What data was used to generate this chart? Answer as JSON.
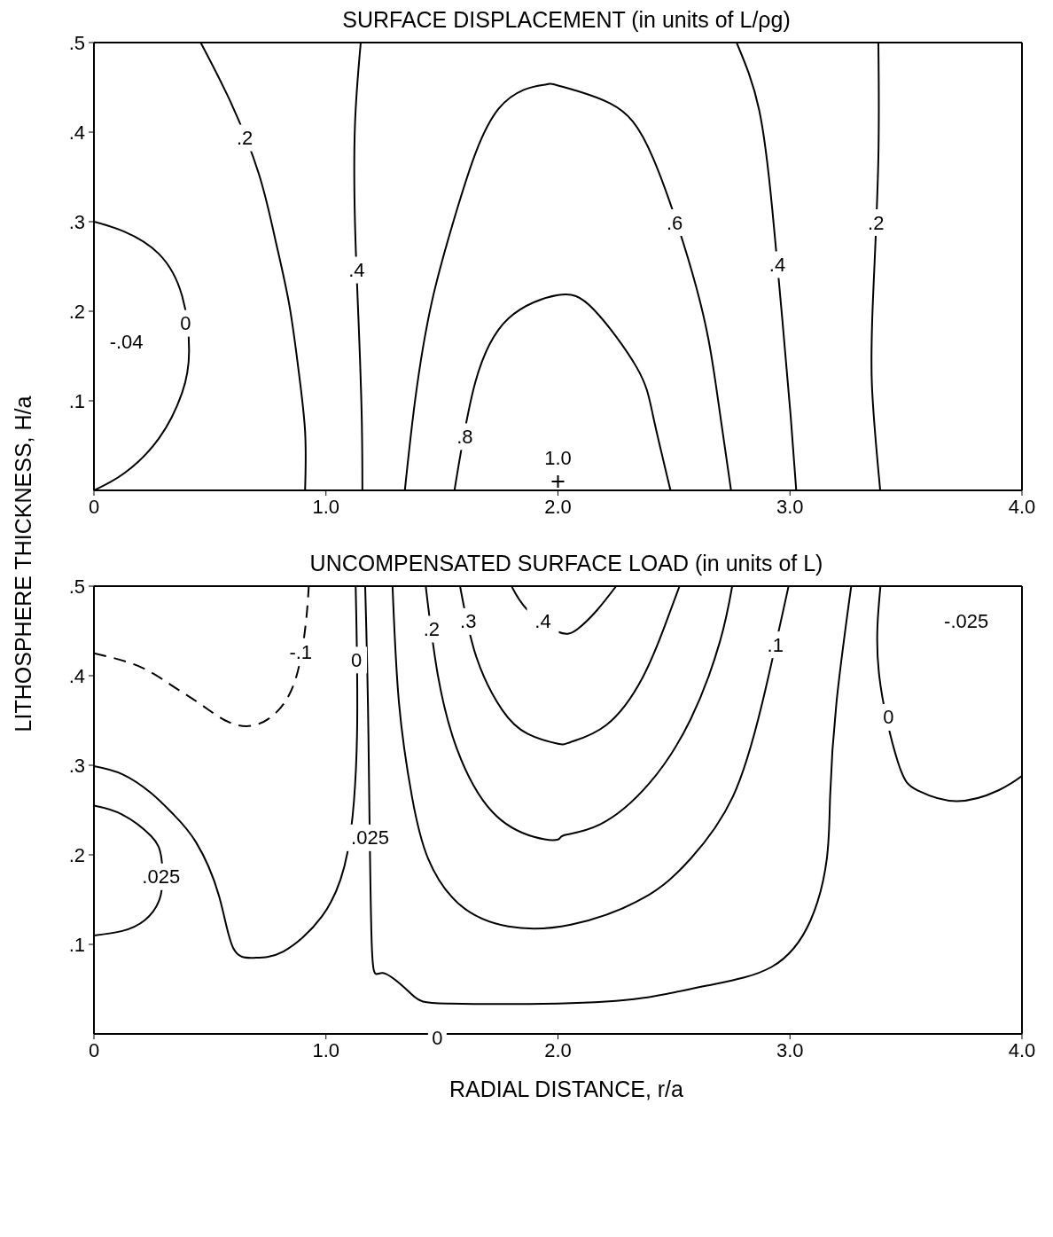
{
  "chart_data": [
    {
      "type": "line",
      "title": "SURFACE DISPLACEMENT (in units of L/ρg)",
      "ylabel": "LITHOSPHERE THICKNESS, H/a",
      "xlim": [
        0,
        4
      ],
      "ylim": [
        0,
        0.5
      ],
      "xticks": [
        0,
        {
          "value": 1,
          "label": "1.0"
        },
        {
          "value": 2,
          "label": "2.0"
        },
        {
          "value": 3,
          "label": "3.0"
        },
        {
          "value": 4,
          "label": "4.0"
        }
      ],
      "yticks": [
        {
          "value": 0.1,
          "label": ".1"
        },
        {
          "value": 0.2,
          "label": ".2"
        },
        {
          "value": 0.3,
          "label": ".3"
        },
        {
          "value": 0.4,
          "label": ".4"
        },
        {
          "value": 0.5,
          "label": ".5"
        }
      ],
      "legend": false,
      "marker": "none",
      "line_style": "solid",
      "annotations": [
        "-.04"
      ],
      "series": [
        {
          "name": "0",
          "color": "#000000",
          "x": [
            0,
            0.13,
            0.28,
            0.38,
            0.41,
            0.38,
            0.28,
            0.13,
            0
          ],
          "values": [
            0.3,
            0.289,
            0.264,
            0.217,
            0.156,
            0.109,
            0.058,
            0.019,
            0
          ]
        },
        {
          "name": ".2",
          "color": "#000000",
          "x": [
            0.46,
            0.59,
            0.71,
            0.78,
            0.84,
            0.88,
            0.91,
            0.91
          ],
          "values": [
            0.5,
            0.433,
            0.354,
            0.282,
            0.21,
            0.138,
            0.066,
            0
          ]
        },
        {
          "name": ".4",
          "color": "#000000",
          "x": [
            1.15,
            1.125,
            1.125,
            1.14,
            1.154,
            1.157
          ],
          "values": [
            0.5,
            0.408,
            0.3,
            0.192,
            0.084,
            0
          ]
        },
        {
          "name": ".6",
          "color": "#000000",
          "x": [
            1.34,
            1.385,
            1.456,
            1.57,
            1.744,
            1.945,
            2.0,
            2.225,
            2.41,
            2.596,
            2.68,
            2.746
          ],
          "values": [
            0,
            0.102,
            0.21,
            0.318,
            0.426,
            0.453,
            0.452,
            0.432,
            0.371,
            0.227,
            0.119,
            0
          ]
        },
        {
          "name": ".8",
          "color": "#000000",
          "x": [
            1.554,
            1.643,
            1.787,
            2.0,
            2.154,
            2.34,
            2.41,
            2.485
          ],
          "values": [
            0,
            0.12,
            0.192,
            0.218,
            0.202,
            0.137,
            0.083,
            0
          ]
        },
        {
          "name": ".4",
          "color": "#000000",
          "x": [
            2.77,
            2.867,
            2.924,
            2.967,
            3.003,
            3.027
          ],
          "values": [
            0.5,
            0.425,
            0.313,
            0.191,
            0.083,
            0
          ]
        },
        {
          "name": ".2",
          "color": "#000000",
          "x": [
            3.381,
            3.381,
            3.36,
            3.353,
            3.389
          ],
          "values": [
            0.5,
            0.371,
            0.227,
            0.119,
            0
          ]
        },
        {
          "name": "1.0",
          "type": "scatter",
          "marker": "cross",
          "color": "#000000",
          "x": [
            2.0
          ],
          "values": [
            0.01
          ]
        }
      ]
    },
    {
      "type": "line",
      "title": "UNCOMPENSATED SURFACE LOAD (in units of L)",
      "xlabel": "RADIAL DISTANCE, r/a",
      "xlim": [
        0,
        4
      ],
      "ylim": [
        0,
        0.5
      ],
      "xticks": [
        0,
        {
          "value": 1,
          "label": "1.0"
        },
        {
          "value": 2,
          "label": "2.0"
        },
        {
          "value": 3,
          "label": "3.0"
        },
        {
          "value": 4,
          "label": "4.0"
        }
      ],
      "yticks": [
        {
          "value": 0.1,
          "label": ".1"
        },
        {
          "value": 0.2,
          "label": ".2"
        },
        {
          "value": 0.3,
          "label": ".3"
        },
        {
          "value": 0.4,
          "label": ".4"
        },
        {
          "value": 0.5,
          "label": ".5"
        }
      ],
      "legend": false,
      "marker": "none",
      "line_style": "solid",
      "annotations": [
        "-.025",
        "0"
      ],
      "series": [
        {
          "name": "-.1",
          "color": "#000000",
          "line_style": "dashed",
          "x": [
            0,
            0.19,
            0.33,
            0.455,
            0.566,
            0.677,
            0.786,
            0.87,
            0.912,
            0.926
          ],
          "values": [
            0.425,
            0.411,
            0.39,
            0.369,
            0.35,
            0.344,
            0.359,
            0.397,
            0.456,
            0.5
          ]
        },
        {
          "name": "0",
          "color": "#000000",
          "x": [
            0,
            0.122,
            0.246,
            0.343,
            0.44,
            0.538,
            0.6,
            0.69,
            0.816,
            0.982,
            1.093,
            1.134,
            1.128
          ],
          "values": [
            0.299,
            0.29,
            0.269,
            0.245,
            0.214,
            0.155,
            0.096,
            0.085,
            0.092,
            0.131,
            0.203,
            0.335,
            0.5
          ]
        },
        {
          "name": ".025",
          "color": "#000000",
          "x": [
            0,
            0.122,
            0.246,
            0.291,
            0.288,
            0.219,
            0.122,
            0
          ],
          "values": [
            0.255,
            0.245,
            0.221,
            0.196,
            0.155,
            0.127,
            0.115,
            0.11
          ]
        },
        {
          "name": ".025",
          "color": "#000000",
          "x": [
            1.169,
            1.183,
            1.197,
            1.245,
            1.37,
            1.523,
            2.0,
            2.363,
            2.642,
            2.922,
            3.089,
            3.159,
            3.173,
            3.2,
            3.264
          ],
          "values": [
            0.5,
            0.335,
            0.103,
            0.068,
            0.044,
            0.034,
            0.034,
            0.04,
            0.054,
            0.075,
            0.127,
            0.196,
            0.265,
            0.369,
            0.5
          ]
        },
        {
          "name": ".1",
          "color": "#000000",
          "x": [
            1.287,
            1.315,
            1.37,
            1.44,
            1.578,
            1.786,
            2.056,
            2.363,
            2.573,
            2.754,
            2.88,
            2.994
          ],
          "values": [
            0.5,
            0.369,
            0.266,
            0.196,
            0.144,
            0.12,
            0.122,
            0.151,
            0.196,
            0.265,
            0.369,
            0.5
          ]
        },
        {
          "name": ".2",
          "color": "#000000",
          "x": [
            1.43,
            1.48,
            1.565,
            1.717,
            1.897,
            2.0,
            2.028,
            2.182,
            2.391,
            2.573,
            2.698,
            2.751
          ],
          "values": [
            0.5,
            0.404,
            0.318,
            0.248,
            0.22,
            0.217,
            0.222,
            0.234,
            0.279,
            0.352,
            0.438,
            0.5
          ]
        },
        {
          "name": ".3",
          "color": "#000000",
          "x": [
            1.578,
            1.648,
            1.759,
            1.87,
            2.0,
            2.056,
            2.209,
            2.363,
            2.461,
            2.524
          ],
          "values": [
            0.5,
            0.421,
            0.362,
            0.335,
            0.324,
            0.326,
            0.345,
            0.397,
            0.456,
            0.5
          ]
        },
        {
          "name": ".4",
          "color": "#000000",
          "x": [
            1.8,
            1.87,
            2.0,
            2.084,
            2.168,
            2.251
          ],
          "values": [
            0.5,
            0.473,
            0.449,
            0.452,
            0.473,
            0.5
          ]
        },
        {
          "name": "0",
          "color": "#000000",
          "x": [
            3.39,
            3.383,
            3.466,
            3.55,
            3.718,
            3.899,
            4.0
          ],
          "values": [
            0.5,
            0.404,
            0.303,
            0.272,
            0.26,
            0.272,
            0.288
          ]
        }
      ]
    }
  ]
}
